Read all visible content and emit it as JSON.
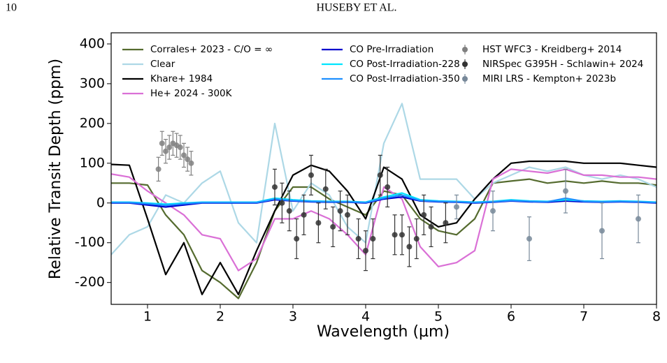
{
  "page": {
    "number": "10",
    "running_head": "HUSEBY ET AL."
  },
  "chart_data": {
    "type": "line",
    "xlabel": "Wavelength (µm)",
    "ylabel": "Relative Transit Depth (ppm)",
    "xlim": [
      0.5,
      8
    ],
    "ylim": [
      -255,
      428
    ],
    "xticks": [
      1,
      2,
      3,
      4,
      5,
      6,
      7,
      8
    ],
    "yticks": [
      -200,
      -100,
      0,
      100,
      200,
      300,
      400
    ],
    "x": [
      0.5,
      0.75,
      1.0,
      1.25,
      1.5,
      1.75,
      2.0,
      2.25,
      2.5,
      2.75,
      3.0,
      3.25,
      3.5,
      3.75,
      4.0,
      4.25,
      4.5,
      4.75,
      5.0,
      5.25,
      5.5,
      5.75,
      6.0,
      6.25,
      6.5,
      6.75,
      7.0,
      7.25,
      7.5,
      7.75,
      8.0
    ],
    "series": [
      {
        "type": "line",
        "name": "Corrales+ 2023 - C/O = ∞",
        "color": "#556b2f",
        "values": [
          50,
          50,
          45,
          -30,
          -80,
          -170,
          -200,
          -240,
          -150,
          -20,
          40,
          40,
          10,
          -10,
          -30,
          30,
          20,
          -40,
          -70,
          -80,
          -40,
          50,
          55,
          60,
          50,
          55,
          50,
          55,
          50,
          50,
          45
        ]
      },
      {
        "type": "line",
        "name": "Clear",
        "color": "#add8e6",
        "values": [
          -130,
          -80,
          -60,
          20,
          0,
          50,
          80,
          -50,
          -100,
          200,
          -20,
          50,
          20,
          -60,
          -100,
          150,
          250,
          60,
          60,
          60,
          10,
          50,
          70,
          90,
          80,
          90,
          70,
          60,
          70,
          60,
          40
        ]
      },
      {
        "type": "line",
        "name": "Khare+ 1984",
        "color": "#000000",
        "values": [
          97,
          95,
          -40,
          -180,
          -100,
          -230,
          -150,
          -230,
          -120,
          -20,
          70,
          95,
          80,
          30,
          -40,
          90,
          60,
          -30,
          -60,
          -50,
          10,
          60,
          100,
          105,
          105,
          105,
          100,
          100,
          100,
          95,
          90
        ]
      },
      {
        "type": "line",
        "name": "He+ 2024 - 300K",
        "color": "#da70d6",
        "values": [
          73,
          65,
          30,
          0,
          -30,
          -80,
          -90,
          -170,
          -140,
          -40,
          -40,
          -20,
          -40,
          -80,
          -130,
          40,
          10,
          -110,
          -160,
          -150,
          -120,
          60,
          85,
          80,
          75,
          85,
          70,
          70,
          65,
          65,
          60
        ]
      },
      {
        "type": "line",
        "name": "CO Pre-Irradiation",
        "color": "#0000cd",
        "values": [
          0,
          0,
          -5,
          -10,
          -5,
          0,
          0,
          0,
          0,
          8,
          5,
          3,
          2,
          2,
          0,
          10,
          15,
          5,
          3,
          2,
          0,
          2,
          5,
          3,
          2,
          5,
          3,
          2,
          3,
          2,
          0
        ]
      },
      {
        "type": "line",
        "name": "CO Post-Irradiation-228",
        "color": "#00e5ff",
        "values": [
          2,
          2,
          0,
          -3,
          0,
          2,
          2,
          2,
          2,
          12,
          8,
          5,
          4,
          4,
          2,
          15,
          25,
          8,
          5,
          4,
          2,
          4,
          8,
          5,
          4,
          8,
          5,
          4,
          5,
          4,
          2
        ]
      },
      {
        "type": "line",
        "name": "CO Post-Irradiation-350",
        "color": "#1e90ff",
        "values": [
          1,
          1,
          -2,
          -6,
          -2,
          1,
          1,
          1,
          1,
          10,
          6,
          4,
          3,
          3,
          1,
          12,
          20,
          6,
          4,
          3,
          1,
          3,
          6,
          4,
          3,
          12,
          4,
          3,
          4,
          3,
          1
        ]
      },
      {
        "type": "errorbar",
        "name": "HST WFC3 - Kreidberg+ 2014",
        "color": "#808080",
        "x": [
          1.15,
          1.2,
          1.25,
          1.3,
          1.35,
          1.4,
          1.45,
          1.5,
          1.55,
          1.6
        ],
        "values": [
          85,
          150,
          130,
          140,
          150,
          145,
          140,
          120,
          110,
          100
        ],
        "errors": [
          30,
          30,
          30,
          30,
          30,
          30,
          30,
          30,
          30,
          30
        ]
      },
      {
        "type": "errorbar",
        "name": "NIRSpec G395H - Schlawin+ 2024",
        "color": "#333333",
        "x": [
          2.75,
          2.85,
          2.95,
          3.05,
          3.15,
          3.25,
          3.35,
          3.45,
          3.55,
          3.65,
          3.75,
          3.9,
          4.0,
          4.1,
          4.2,
          4.3,
          4.4,
          4.5,
          4.6,
          4.7,
          4.8,
          4.9,
          5.1
        ],
        "values": [
          40,
          0,
          -20,
          -90,
          -30,
          70,
          -50,
          35,
          -60,
          -20,
          -30,
          -90,
          -120,
          -90,
          70,
          40,
          -80,
          -80,
          -110,
          -90,
          -30,
          -60,
          -50
        ],
        "errors": [
          45,
          50,
          50,
          50,
          50,
          50,
          50,
          50,
          50,
          50,
          50,
          50,
          50,
          50,
          50,
          50,
          50,
          50,
          50,
          50,
          50,
          50,
          50
        ]
      },
      {
        "type": "errorbar",
        "name": "MIRI LRS - Kempton+ 2023b",
        "color": "#778899",
        "x": [
          5.25,
          5.75,
          6.25,
          6.75,
          7.25,
          7.75
        ],
        "values": [
          -10,
          -20,
          -90,
          30,
          -70,
          -40
        ],
        "errors": [
          30,
          50,
          55,
          55,
          70,
          60
        ]
      }
    ]
  }
}
